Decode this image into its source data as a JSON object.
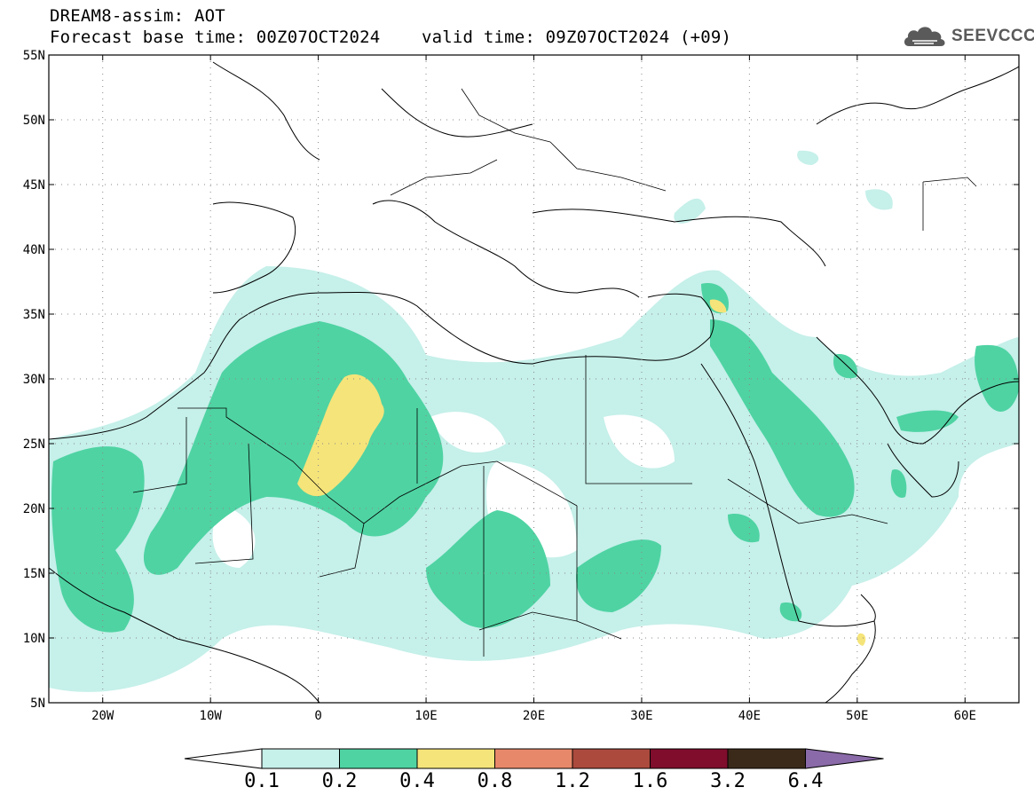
{
  "header": {
    "line1": "DREAM8-assim: AOT",
    "line2": "Forecast base time: 00Z07OCT2024    valid time: 09Z07OCT2024 (+09)"
  },
  "logo": {
    "text": "SEEVCCC",
    "icon": "cloud-icon",
    "color": "#5a5a5a"
  },
  "map": {
    "lon_range": [
      -25,
      65
    ],
    "lat_range": [
      5,
      55
    ],
    "lat_labels": [
      "55N",
      "50N",
      "45N",
      "40N",
      "35N",
      "30N",
      "25N",
      "20N",
      "15N",
      "10N",
      "5N"
    ],
    "lon_labels": [
      "20W",
      "10W",
      "0",
      "10E",
      "20E",
      "30E",
      "40E",
      "50E",
      "60E"
    ],
    "grid": "dotted",
    "field": "AOT",
    "max_region": {
      "label": "0.4-0.8",
      "lon": [
        -1,
        6
      ],
      "lat": [
        21,
        30
      ]
    }
  },
  "colorbar": {
    "labels": [
      "0.1",
      "0.2",
      "0.4",
      "0.8",
      "1.2",
      "1.6",
      "3.2",
      "6.4"
    ],
    "colors": [
      "#c6f0ea",
      "#4fd3a3",
      "#f5e47a",
      "#e8886a",
      "#ac4a3e",
      "#7f0d2b",
      "#3b2a1a",
      "#8a6aa8"
    ],
    "under_color": "#ffffff"
  }
}
